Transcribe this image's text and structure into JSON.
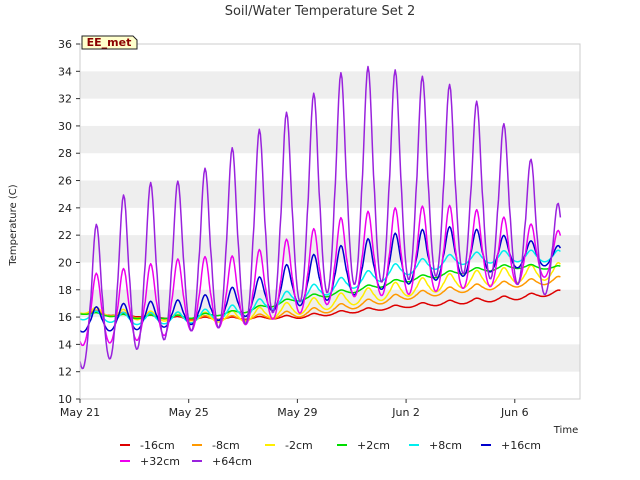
{
  "chart_data": {
    "type": "line",
    "title": "Soil/Water Temperature Set 2",
    "xlabel": "Time",
    "ylabel": "Temperature (C)",
    "badge": "EE_met",
    "ylim": [
      10,
      36
    ],
    "yticks": [
      10,
      12,
      14,
      16,
      18,
      20,
      22,
      24,
      26,
      28,
      30,
      32,
      34,
      36
    ],
    "xlim": [
      "2023-05-21",
      "2023-06-09"
    ],
    "xticks": [
      {
        "label": "May 21",
        "day": 0
      },
      {
        "label": "May 25",
        "day": 4
      },
      {
        "label": "May 29",
        "day": 8
      },
      {
        "label": "Jun 2",
        "day": 12
      },
      {
        "label": "Jun 6",
        "day": 16
      }
    ],
    "x_start_day": 0,
    "x_end_day": 17.7,
    "grid": true,
    "legend_position": "bottom",
    "series": [
      {
        "name": "-16cm",
        "color": "#dd0000",
        "x": [
          0,
          2,
          4,
          6,
          8,
          10,
          12,
          14,
          16,
          17.7
        ],
        "y": [
          16.3,
          16.1,
          15.9,
          15.9,
          16.0,
          16.4,
          16.8,
          17.1,
          17.4,
          17.8
        ],
        "amp": [
          0.1,
          0.1,
          0.1,
          0.1,
          0.15,
          0.15,
          0.15,
          0.2,
          0.2,
          0.2
        ]
      },
      {
        "name": "-8cm",
        "color": "#ff9900",
        "x": [
          0,
          2,
          4,
          6,
          8,
          10,
          12,
          14,
          16,
          17.7
        ],
        "y": [
          16.4,
          16.1,
          15.9,
          15.9,
          16.2,
          16.8,
          17.5,
          18.0,
          18.4,
          18.7
        ],
        "amp": [
          0.2,
          0.2,
          0.2,
          0.2,
          0.3,
          0.3,
          0.3,
          0.3,
          0.3,
          0.3
        ]
      },
      {
        "name": "-2cm",
        "color": "#ffee00",
        "x": [
          0,
          2,
          4,
          6,
          8,
          10,
          12,
          14,
          16,
          17.7
        ],
        "y": [
          16.5,
          16.1,
          15.9,
          16.0,
          16.6,
          17.3,
          18.0,
          18.6,
          19.0,
          19.3
        ],
        "amp": [
          0.3,
          0.4,
          0.4,
          0.5,
          0.6,
          0.6,
          0.7,
          0.7,
          0.7,
          0.7
        ]
      },
      {
        "name": "+2cm",
        "color": "#00dd00",
        "x": [
          0,
          2,
          4,
          6,
          8,
          10,
          12,
          14,
          16,
          17.7
        ],
        "y": [
          16.3,
          16.0,
          16.0,
          16.4,
          17.3,
          17.9,
          18.7,
          19.3,
          19.7,
          19.6
        ],
        "amp": [
          0.1,
          0.15,
          0.15,
          0.15,
          0.2,
          0.2,
          0.2,
          0.2,
          0.2,
          0.15
        ]
      },
      {
        "name": "+8cm",
        "color": "#00eeee",
        "x": [
          0,
          2,
          4,
          6,
          8,
          10,
          12,
          14,
          16,
          17.7
        ],
        "y": [
          16.1,
          15.8,
          15.9,
          16.4,
          17.5,
          18.5,
          19.5,
          20.2,
          20.4,
          20.4
        ],
        "amp": [
          0.4,
          0.5,
          0.5,
          0.6,
          0.6,
          0.6,
          0.6,
          0.5,
          0.5,
          0.5
        ]
      },
      {
        "name": "+16cm",
        "color": "#0000cc",
        "x": [
          0,
          2,
          4,
          6,
          8,
          10,
          12,
          14,
          16,
          17.7
        ],
        "y": [
          15.6,
          15.9,
          16.2,
          17.0,
          18.2,
          19.2,
          20.0,
          20.5,
          20.5,
          20.4
        ],
        "amp": [
          1.0,
          1.2,
          1.1,
          1.4,
          2.0,
          2.3,
          2.3,
          2.2,
          1.3,
          0.8
        ]
      },
      {
        "name": "+32cm",
        "color": "#ee00ee",
        "x": [
          0,
          2,
          4,
          6,
          8,
          10,
          12,
          14,
          16,
          17.7
        ],
        "y": [
          16.0,
          16.5,
          17.2,
          17.5,
          18.6,
          20.0,
          20.3,
          20.6,
          20.3,
          20.5
        ],
        "amp": [
          3.0,
          3.2,
          3.2,
          3.0,
          3.4,
          3.6,
          3.8,
          3.6,
          2.8,
          1.8
        ]
      },
      {
        "name": "+64cm",
        "color": "#9922dd",
        "x": [
          0,
          2,
          4,
          6,
          8,
          10,
          12,
          14,
          16,
          17.7
        ],
        "y": [
          16.0,
          18.6,
          19.5,
          21.0,
          23.0,
          25.0,
          25.0,
          24.8,
          23.0,
          20.0
        ],
        "amp": [
          5.5,
          7.2,
          6.5,
          8.0,
          8.5,
          9.5,
          9.0,
          8.0,
          6.5,
          4.0
        ]
      }
    ]
  }
}
